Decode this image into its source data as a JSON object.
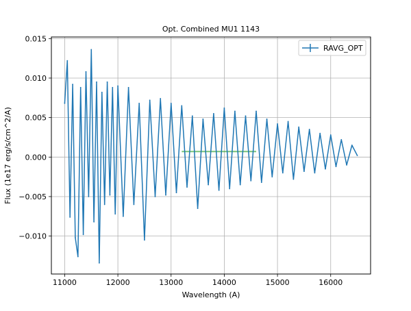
{
  "chart_data": {
    "type": "line",
    "title": "Opt. Combined MU1 1143",
    "xlabel": "Wavelength (A)",
    "ylabel": "Flux (1e17 erg/s/cm^2/A)",
    "xlim": [
      10750,
      16750
    ],
    "ylim": [
      -0.0148,
      0.0152
    ],
    "xticks": [
      11000,
      12000,
      13000,
      14000,
      15000,
      16000
    ],
    "xtick_labels": [
      "11000",
      "12000",
      "13000",
      "14000",
      "15000",
      "16000"
    ],
    "yticks": [
      -0.01,
      -0.005,
      0.0,
      0.005,
      0.01,
      0.015
    ],
    "ytick_labels": [
      "−0.010",
      "−0.005",
      "0.000",
      "0.005",
      "0.010",
      "0.015"
    ],
    "grid": true,
    "legend_position": "top-right",
    "series": [
      {
        "name": "RAVG_OPT",
        "color": "#1f77b4",
        "style": "errorbar-line",
        "x": [
          11000,
          11050,
          11100,
          11150,
          11200,
          11250,
          11300,
          11350,
          11400,
          11450,
          11500,
          11550,
          11600,
          11650,
          11700,
          11750,
          11800,
          11850,
          11900,
          11950,
          12000,
          12100,
          12200,
          12300,
          12400,
          12500,
          12600,
          12700,
          12800,
          12900,
          13000,
          13100,
          13200,
          13300,
          13400,
          13500,
          13600,
          13700,
          13800,
          13900,
          14000,
          14100,
          14200,
          14300,
          14400,
          14500,
          14600,
          14700,
          14800,
          14900,
          15000,
          15100,
          15200,
          15300,
          15400,
          15500,
          15600,
          15700,
          15800,
          15900,
          16000,
          16100,
          16200,
          16300,
          16400,
          16500
        ],
        "y": [
          0.0068,
          0.0122,
          -0.0076,
          0.0092,
          -0.0102,
          -0.0126,
          0.0088,
          -0.0098,
          0.0108,
          -0.005,
          0.0136,
          -0.0082,
          0.0095,
          -0.0134,
          0.0082,
          -0.006,
          0.0095,
          -0.0048,
          0.0088,
          -0.0072,
          0.009,
          -0.0075,
          0.0088,
          -0.006,
          0.0068,
          -0.0105,
          0.0072,
          -0.005,
          0.0074,
          -0.0048,
          0.0068,
          -0.0045,
          0.0065,
          -0.0038,
          0.0052,
          -0.0065,
          0.0048,
          -0.0035,
          0.0055,
          -0.0042,
          0.0062,
          -0.004,
          0.0058,
          -0.0035,
          0.0052,
          -0.003,
          0.0058,
          -0.0032,
          0.0048,
          -0.0025,
          0.0042,
          -0.002,
          0.0045,
          -0.0028,
          0.0038,
          -0.0018,
          0.0035,
          -0.002,
          0.003,
          -0.0015,
          0.0028,
          -0.0012,
          0.0022,
          -0.001,
          0.0015,
          0.0002
        ]
      },
      {
        "name": "",
        "color": "#2ca02c",
        "style": "line",
        "x": [
          13200,
          14600
        ],
        "y": [
          0.0007,
          0.0007
        ]
      }
    ]
  }
}
